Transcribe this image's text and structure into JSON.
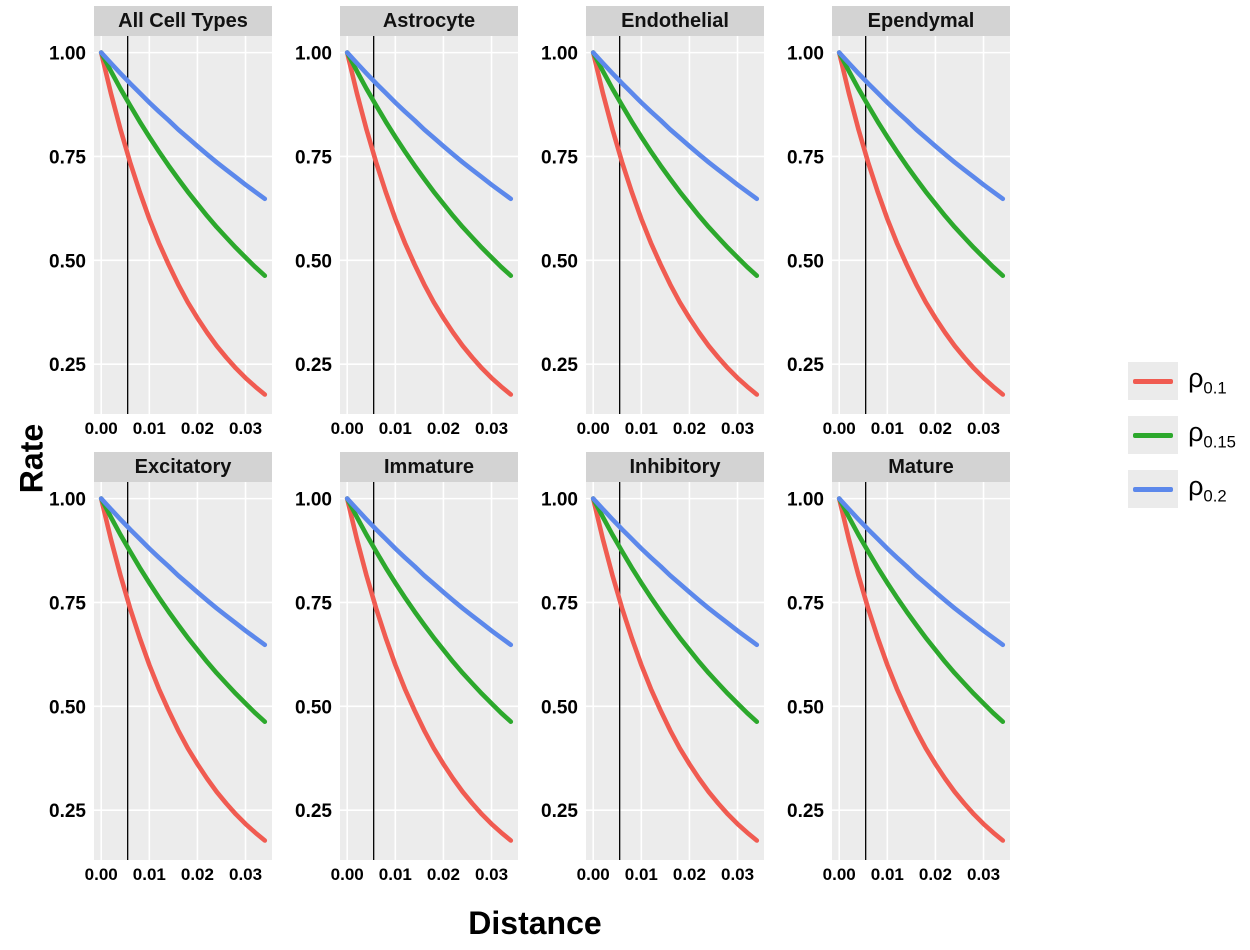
{
  "figure": {
    "y_axis_title": "Rate",
    "x_axis_title": "Distance"
  },
  "axes": {
    "x_ticks": [
      "0.00",
      "0.01",
      "0.02",
      "0.03"
    ],
    "x_tick_values": [
      0,
      0.01,
      0.02,
      0.03
    ],
    "y_ticks": [
      "1.00",
      "0.75",
      "0.50",
      "0.25"
    ],
    "y_tick_values": [
      1.0,
      0.75,
      0.5,
      0.25
    ],
    "x_domain": [
      -0.0015,
      0.0355
    ],
    "y_domain": [
      0.13,
      1.04
    ]
  },
  "panel": {
    "bg": "#ececec",
    "grid_color": "#ffffff",
    "strip_bg": "#d3d3d3",
    "vline_x": 0.0055,
    "vline_color": "#000000"
  },
  "legend": {
    "items": [
      {
        "base": "ρ",
        "sub": "0.1",
        "color": "#f05b51"
      },
      {
        "base": "ρ",
        "sub": "0.15",
        "color": "#2ca82c"
      },
      {
        "base": "ρ",
        "sub": "0.2",
        "color": "#5c88eb"
      }
    ]
  },
  "chart_data": {
    "type": "line",
    "title": "",
    "xlabel": "Distance",
    "ylabel": "Rate",
    "xlim": [
      0,
      0.034
    ],
    "ylim": [
      0.13,
      1.04
    ],
    "x_ticks": [
      0,
      0.01,
      0.02,
      0.03
    ],
    "y_ticks": [
      0.25,
      0.5,
      0.75,
      1.0
    ],
    "legend_position": "right",
    "grid": true,
    "facets": [
      "All Cell Types",
      "Astrocyte",
      "Endothelial",
      "Ependymal",
      "Excitatory",
      "Immature",
      "Inhibitory",
      "Mature"
    ],
    "facet_note": "identical decay curves repeated in every facet; vertical reference line at x = 0.0055",
    "vline_x": 0.0055,
    "x": [
      0,
      0.002,
      0.004,
      0.006,
      0.008,
      0.01,
      0.012,
      0.014,
      0.016,
      0.018,
      0.02,
      0.022,
      0.024,
      0.026,
      0.028,
      0.03,
      0.032,
      0.034
    ],
    "series": [
      {
        "name": "rho_0.1",
        "rho": 0.1,
        "color": "#f05b51",
        "values": [
          1,
          0.903,
          0.815,
          0.736,
          0.665,
          0.6,
          0.542,
          0.49,
          0.442,
          0.399,
          0.361,
          0.326,
          0.294,
          0.266,
          0.24,
          0.217,
          0.196,
          0.177
        ]
      },
      {
        "name": "rho_0.15",
        "rho": 0.15,
        "color": "#2ca82c",
        "values": [
          1,
          0.956,
          0.913,
          0.873,
          0.834,
          0.797,
          0.762,
          0.728,
          0.696,
          0.665,
          0.636,
          0.607,
          0.58,
          0.555,
          0.53,
          0.507,
          0.484,
          0.463
        ]
      },
      {
        "name": "rho_0.2",
        "rho": 0.2,
        "color": "#5c88eb",
        "values": [
          1,
          0.975,
          0.95,
          0.926,
          0.903,
          0.88,
          0.858,
          0.837,
          0.815,
          0.795,
          0.775,
          0.755,
          0.736,
          0.718,
          0.7,
          0.682,
          0.665,
          0.648
        ]
      }
    ]
  }
}
